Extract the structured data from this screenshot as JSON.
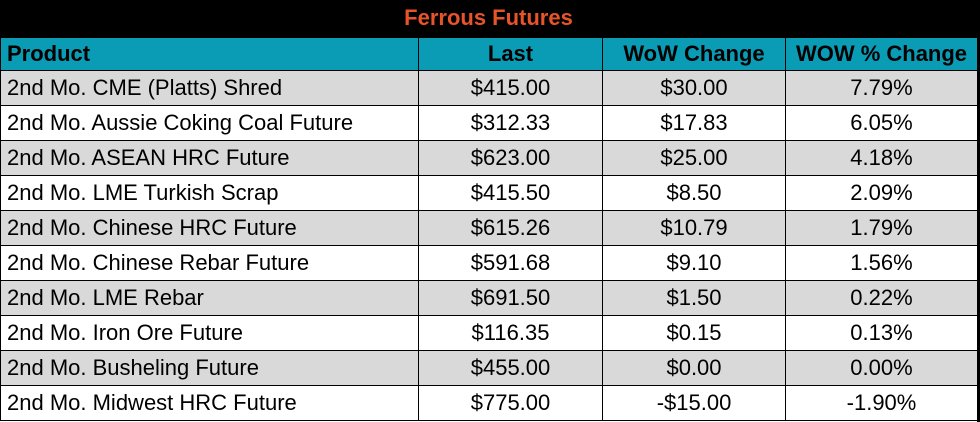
{
  "title": "Ferrous Futures",
  "headers": {
    "product": "Product",
    "last": "Last",
    "wow_change": "WoW Change",
    "wow_pct_change": "WOW % Change"
  },
  "rows": [
    {
      "product": "2nd Mo. CME (Platts) Shred",
      "last": "$415.00",
      "wow_change": "$30.00",
      "wow_pct": "7.79%"
    },
    {
      "product": "2nd Mo. Aussie Coking Coal Future",
      "last": "$312.33",
      "wow_change": "$17.83",
      "wow_pct": "6.05%"
    },
    {
      "product": "2nd Mo. ASEAN HRC Future",
      "last": "$623.00",
      "wow_change": "$25.00",
      "wow_pct": "4.18%"
    },
    {
      "product": "2nd Mo. LME Turkish Scrap",
      "last": "$415.50",
      "wow_change": "$8.50",
      "wow_pct": "2.09%"
    },
    {
      "product": "2nd Mo. Chinese HRC Future",
      "last": "$615.26",
      "wow_change": "$10.79",
      "wow_pct": "1.79%"
    },
    {
      "product": "2nd Mo. Chinese Rebar Future",
      "last": "$591.68",
      "wow_change": "$9.10",
      "wow_pct": "1.56%"
    },
    {
      "product": "2nd Mo. LME Rebar",
      "last": "$691.50",
      "wow_change": "$1.50",
      "wow_pct": "0.22%"
    },
    {
      "product": "2nd Mo. Iron Ore Future",
      "last": "$116.35",
      "wow_change": "$0.15",
      "wow_pct": "0.13%"
    },
    {
      "product": "2nd Mo. Busheling Future",
      "last": "$455.00",
      "wow_change": "$0.00",
      "wow_pct": "0.00%"
    },
    {
      "product": "2nd Mo. Midwest HRC Future",
      "last": "$775.00",
      "wow_change": "-$15.00",
      "wow_pct": "-1.90%"
    }
  ],
  "colors": {
    "title_background": "#000000",
    "title_text": "#e8542a",
    "header_background": "#0a9bb5",
    "shaded_row": "#d9d9d9",
    "plain_row": "#ffffff"
  }
}
